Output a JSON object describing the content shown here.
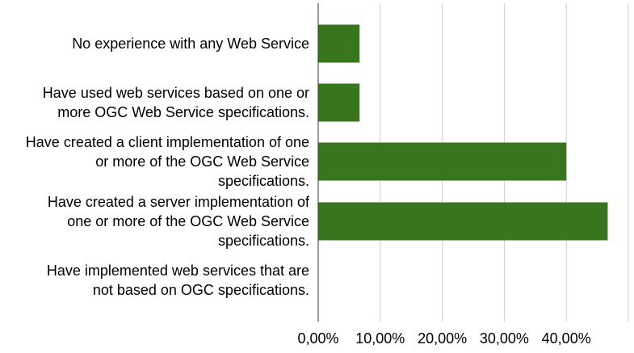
{
  "chart_data": {
    "type": "bar",
    "orientation": "horizontal",
    "categories": [
      "No experience with any Web Service",
      "Have used web services based on one or more OGC Web Service specifications.",
      "Have created a client implementation of one or more of the OGC Web Service specifications.",
      "Have created a server implementation of one or more of the OGC Web Service specifications.",
      "Have implemented web services that are not based on OGC specifications."
    ],
    "category_label_lines": [
      [
        "No experience with any Web Service"
      ],
      [
        "Have used web services based on one or",
        "more OGC Web Service specifications."
      ],
      [
        "Have created a client implementation of one",
        "or more of the OGC Web Service",
        "specifications."
      ],
      [
        "Have created a server implementation of",
        "one or more of the OGC Web Service",
        "specifications."
      ],
      [
        "Have implemented web services that are",
        "not based on OGC specifications."
      ]
    ],
    "values": [
      6.67,
      6.67,
      40.0,
      46.67,
      0.0
    ],
    "xlim": [
      0,
      50
    ],
    "x_ticks": [
      0,
      10,
      20,
      30,
      40
    ],
    "x_tick_labels": [
      "0,00%",
      "10,00%",
      "20,00%",
      "30,00%",
      "40,00%"
    ],
    "grid": true,
    "legend": "none",
    "bar_color": "#38761d",
    "grid_color": "#cccccc",
    "axis_color": "#333333",
    "title": "",
    "xlabel": "",
    "ylabel": ""
  }
}
